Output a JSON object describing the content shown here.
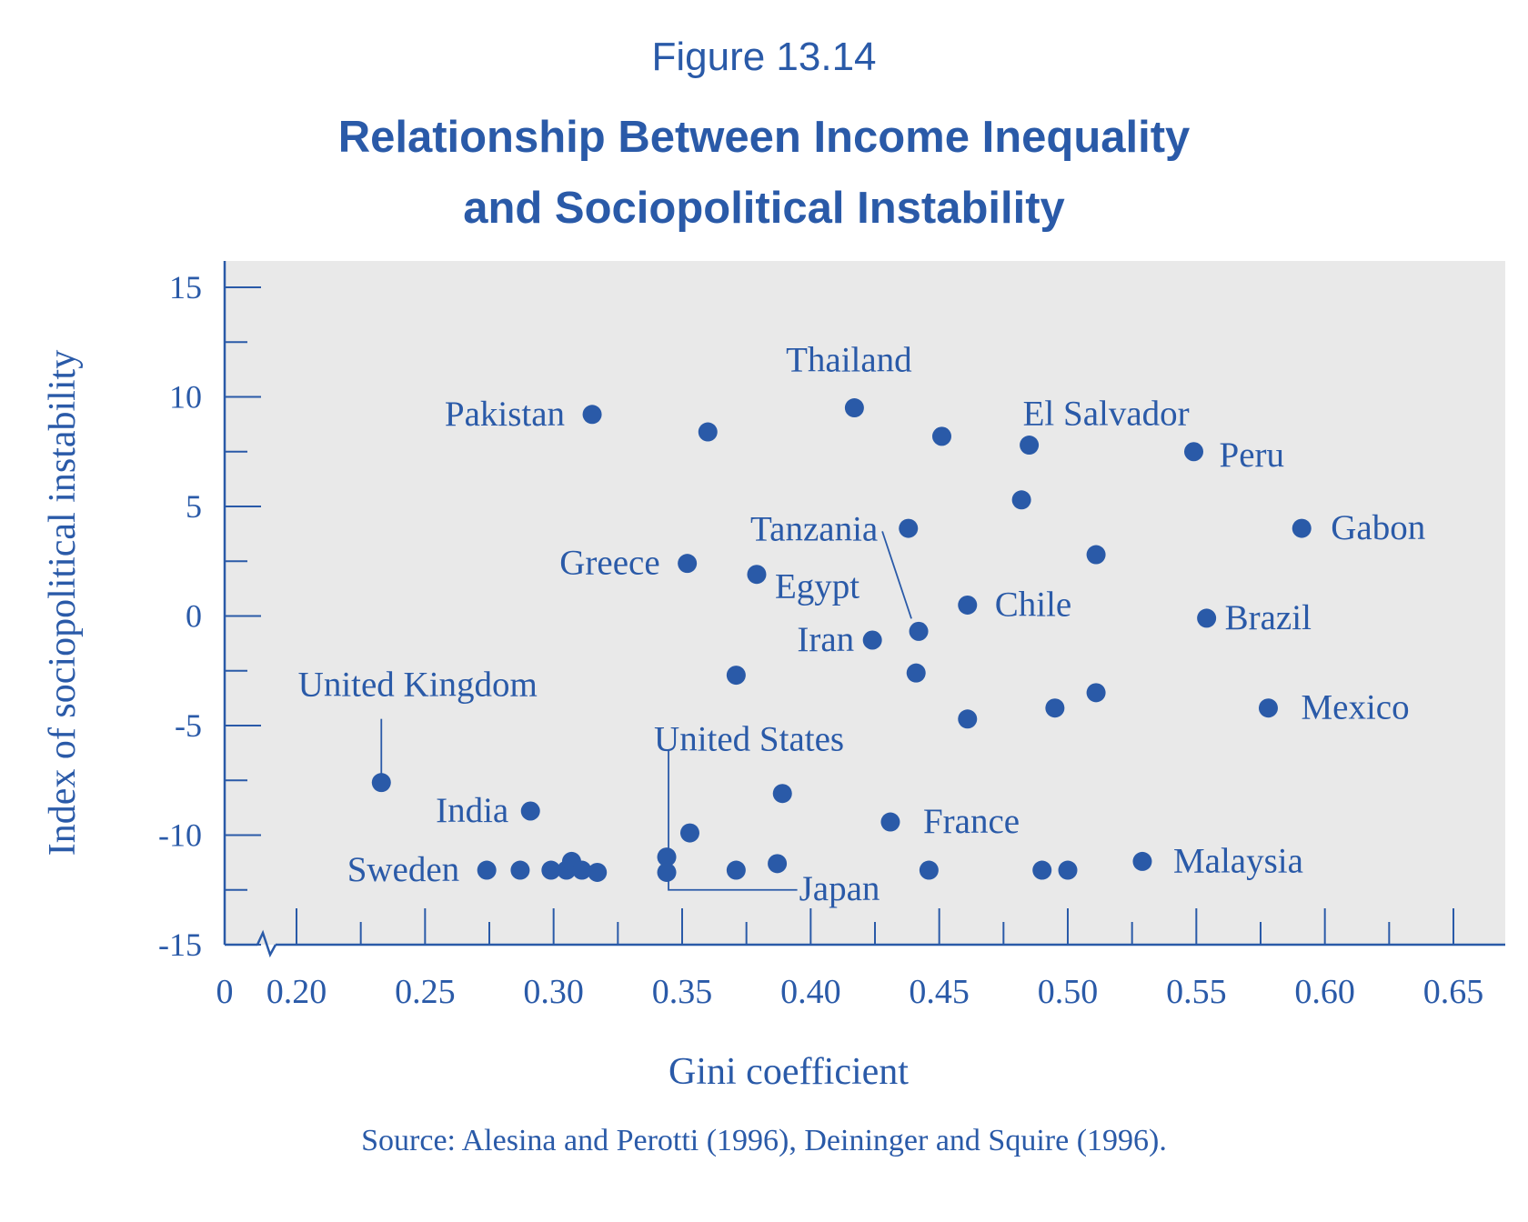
{
  "figure_number": "Figure 13.14",
  "title_line1": "Relationship Between Income Inequality",
  "title_line2": "and Sociopolitical Instability",
  "source": "Source: Alesina and Perotti (1996), Deininger and Squire (1996).",
  "colors": {
    "primary": "#2a5aa8",
    "plot_background": "#e9e9e9"
  },
  "chart_data": {
    "type": "scatter",
    "title": "Relationship Between Income Inequality and Sociopolitical Instability",
    "xlabel": "Gini coefficient",
    "ylabel": "Index of sociopolitical instability",
    "x_axis_break": true,
    "xlim": [
      0.185,
      0.655
    ],
    "ylim": [
      -15,
      16
    ],
    "x_ticks": [
      0.2,
      0.25,
      0.3,
      0.35,
      0.4,
      0.45,
      0.5,
      0.55,
      0.6,
      0.65
    ],
    "x_tick_labels": [
      "0",
      "0.20",
      "0.25",
      "0.30",
      "0.35",
      "0.40",
      "0.45",
      "0.50",
      "0.55",
      "0.60",
      "0.65"
    ],
    "y_ticks": [
      -15,
      -10,
      -5,
      0,
      5,
      10,
      15
    ],
    "y_tick_labels": [
      "-15",
      "-10",
      "-5",
      "0",
      "5",
      "10",
      "15"
    ],
    "grid": false,
    "points": [
      {
        "x": 0.315,
        "y": 9.2,
        "label": "Pakistan"
      },
      {
        "x": 0.36,
        "y": 8.4
      },
      {
        "x": 0.417,
        "y": 9.5,
        "label": "Thailand"
      },
      {
        "x": 0.451,
        "y": 8.2
      },
      {
        "x": 0.485,
        "y": 7.8,
        "label": "El Salvador"
      },
      {
        "x": 0.549,
        "y": 7.5,
        "label": "Peru"
      },
      {
        "x": 0.482,
        "y": 5.3
      },
      {
        "x": 0.591,
        "y": 4.0,
        "label": "Gabon"
      },
      {
        "x": 0.438,
        "y": 4.0
      },
      {
        "x": 0.511,
        "y": 2.8
      },
      {
        "x": 0.352,
        "y": 2.4,
        "label": "Greece"
      },
      {
        "x": 0.379,
        "y": 1.9,
        "label": "Egypt"
      },
      {
        "x": 0.461,
        "y": 0.5,
        "label": "Chile"
      },
      {
        "x": 0.442,
        "y": -0.7,
        "label": "Tanzania"
      },
      {
        "x": 0.554,
        "y": -0.1,
        "label": "Brazil"
      },
      {
        "x": 0.424,
        "y": -1.1,
        "label": "Iran"
      },
      {
        "x": 0.441,
        "y": -2.6
      },
      {
        "x": 0.371,
        "y": -2.7
      },
      {
        "x": 0.511,
        "y": -3.5
      },
      {
        "x": 0.495,
        "y": -4.2
      },
      {
        "x": 0.578,
        "y": -4.2,
        "label": "Mexico"
      },
      {
        "x": 0.461,
        "y": -4.7
      },
      {
        "x": 0.233,
        "y": -7.6,
        "label": "United Kingdom"
      },
      {
        "x": 0.389,
        "y": -8.1
      },
      {
        "x": 0.291,
        "y": -8.9,
        "label": "India"
      },
      {
        "x": 0.431,
        "y": -9.4,
        "label": "France"
      },
      {
        "x": 0.353,
        "y": -9.9
      },
      {
        "x": 0.344,
        "y": -11.0,
        "label": "United States"
      },
      {
        "x": 0.344,
        "y": -11.7
      },
      {
        "x": 0.387,
        "y": -11.3,
        "label": "Japan"
      },
      {
        "x": 0.371,
        "y": -11.6
      },
      {
        "x": 0.446,
        "y": -11.6
      },
      {
        "x": 0.49,
        "y": -11.6
      },
      {
        "x": 0.5,
        "y": -11.6
      },
      {
        "x": 0.529,
        "y": -11.2,
        "label": "Malaysia"
      },
      {
        "x": 0.274,
        "y": -11.6,
        "label": "Sweden"
      },
      {
        "x": 0.287,
        "y": -11.6
      },
      {
        "x": 0.299,
        "y": -11.6
      },
      {
        "x": 0.305,
        "y": -11.6
      },
      {
        "x": 0.307,
        "y": -11.2
      },
      {
        "x": 0.311,
        "y": -11.6
      },
      {
        "x": 0.317,
        "y": -11.7
      }
    ]
  }
}
